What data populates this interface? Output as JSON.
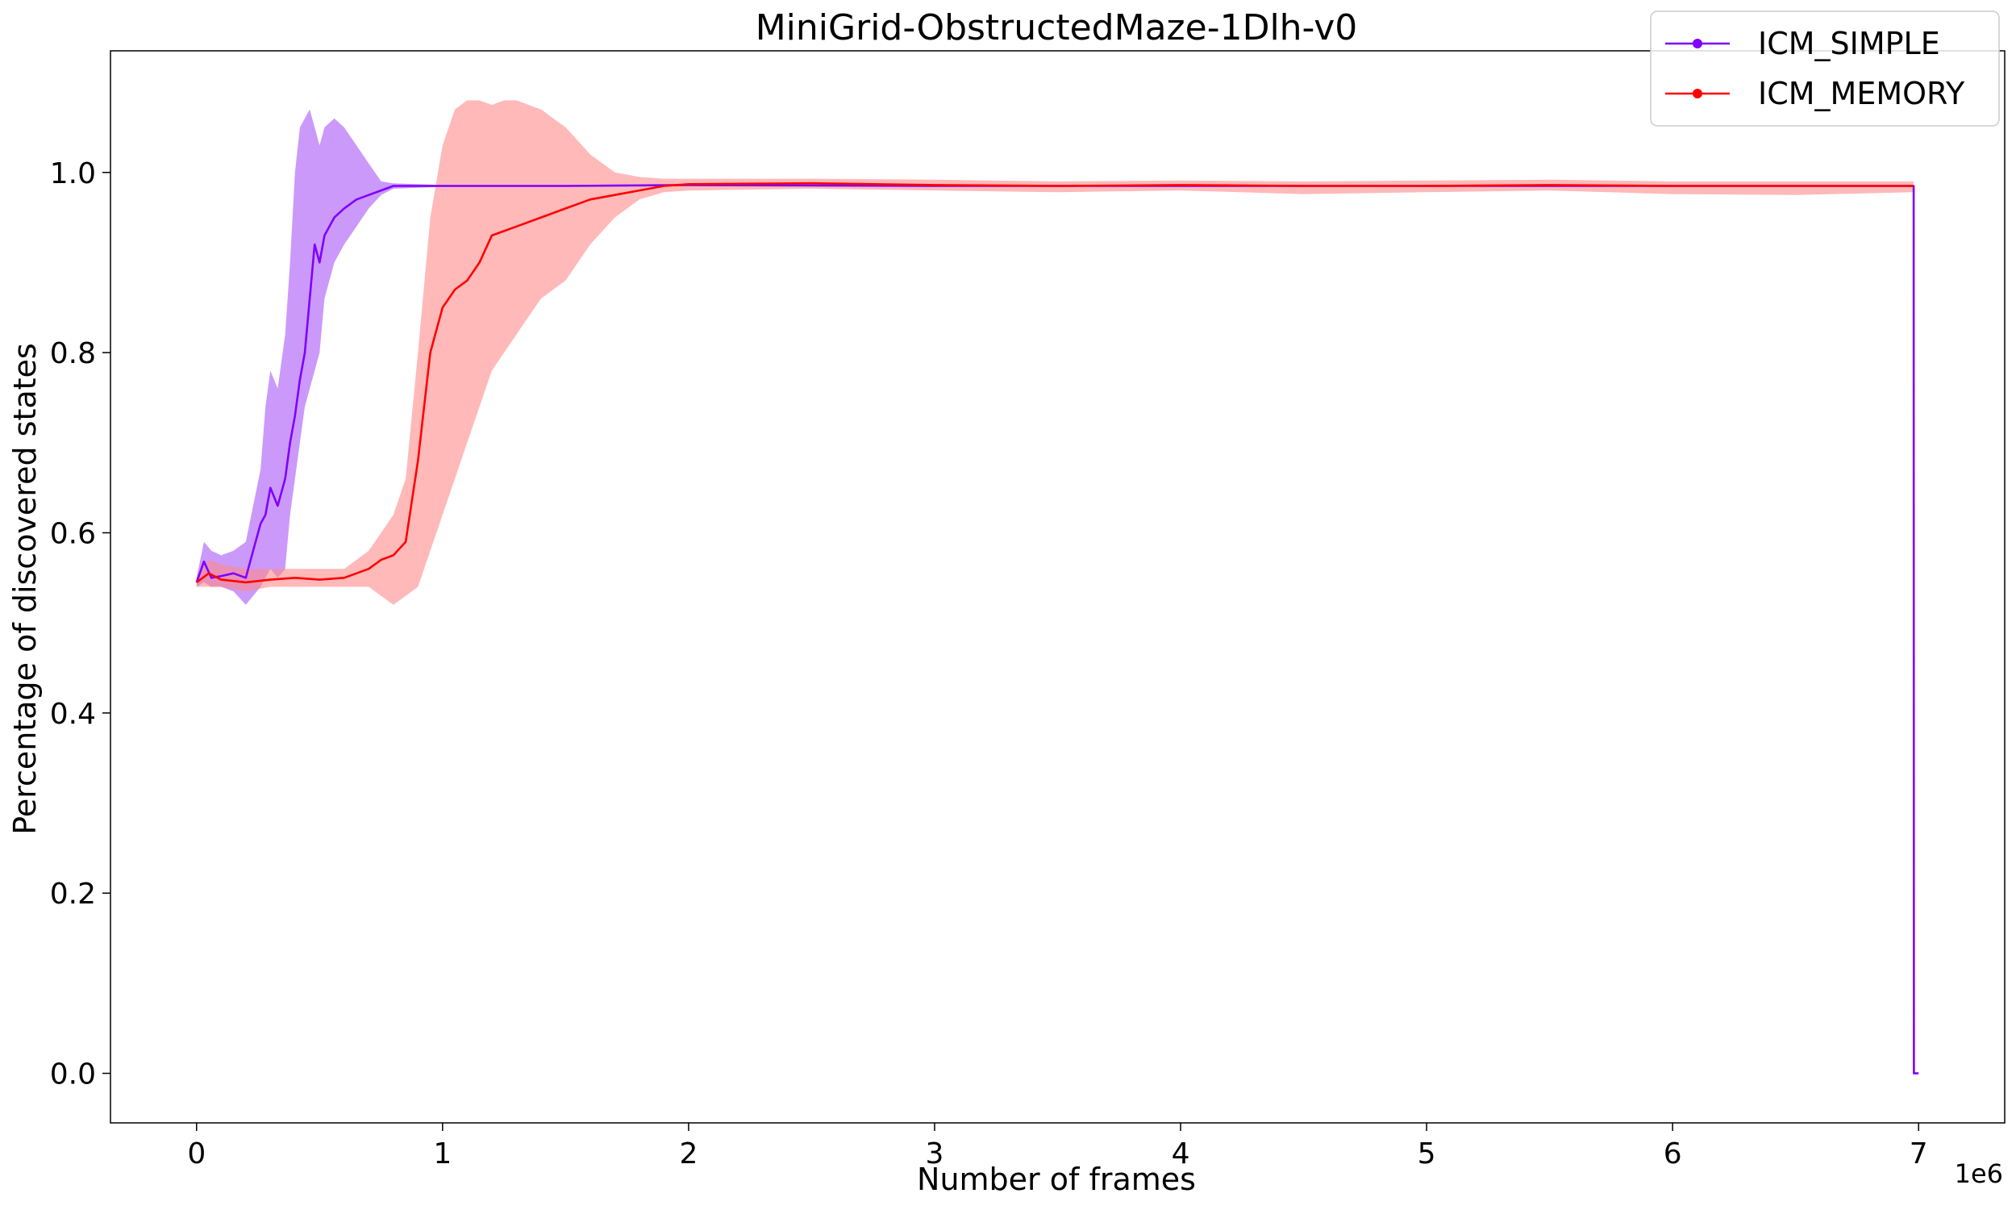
{
  "chart_data": {
    "type": "line",
    "title": "MiniGrid-ObstructedMaze-1Dlh-v0",
    "xlabel": "Number of frames",
    "ylabel": "Percentage of discovered states",
    "x_offset_text": "1e6",
    "xlim": [
      -350000,
      7350000
    ],
    "ylim": [
      -0.055,
      1.135
    ],
    "x_ticks": [
      0,
      1000000,
      2000000,
      3000000,
      4000000,
      5000000,
      6000000,
      7000000
    ],
    "x_tick_labels": [
      "0",
      "1",
      "2",
      "3",
      "4",
      "5",
      "6",
      "7"
    ],
    "y_ticks": [
      0.0,
      0.2,
      0.4,
      0.6,
      0.8,
      1.0
    ],
    "y_tick_labels": [
      "0.0",
      "0.2",
      "0.4",
      "0.6",
      "0.8",
      "1.0"
    ],
    "grid": false,
    "legend_position": "top-right",
    "series": [
      {
        "name": "ICM_SIMPLE",
        "color": "#8000ff",
        "band_color": "#a855f7",
        "x": [
          0,
          30000,
          60000,
          100000,
          150000,
          200000,
          230000,
          260000,
          280000,
          300000,
          330000,
          360000,
          380000,
          400000,
          420000,
          440000,
          460000,
          480000,
          500000,
          520000,
          560000,
          600000,
          650000,
          700000,
          750000,
          800000,
          1000000,
          1500000,
          2000000,
          3000000,
          4000000,
          5000000,
          6000000,
          6980000,
          6981000,
          7000000
        ],
        "y": [
          0.545,
          0.568,
          0.55,
          0.552,
          0.555,
          0.55,
          0.58,
          0.61,
          0.62,
          0.65,
          0.63,
          0.66,
          0.7,
          0.73,
          0.77,
          0.8,
          0.86,
          0.92,
          0.9,
          0.93,
          0.95,
          0.96,
          0.97,
          0.975,
          0.98,
          0.985,
          0.985,
          0.985,
          0.986,
          0.985,
          0.985,
          0.985,
          0.985,
          0.985,
          0.0,
          0.0
        ],
        "lower": [
          0.54,
          0.545,
          0.54,
          0.54,
          0.535,
          0.52,
          0.53,
          0.54,
          0.55,
          0.56,
          0.55,
          0.56,
          0.62,
          0.66,
          0.7,
          0.74,
          0.76,
          0.78,
          0.8,
          0.86,
          0.9,
          0.92,
          0.94,
          0.96,
          0.975,
          0.982,
          0.984,
          0.984,
          0.985,
          0.984,
          0.984,
          0.984,
          0.984,
          0.984,
          0.0,
          0.0
        ],
        "upper": [
          0.55,
          0.59,
          0.58,
          0.575,
          0.58,
          0.59,
          0.63,
          0.67,
          0.74,
          0.78,
          0.76,
          0.82,
          0.9,
          1.0,
          1.05,
          1.06,
          1.07,
          1.05,
          1.03,
          1.05,
          1.06,
          1.05,
          1.03,
          1.01,
          0.99,
          0.988,
          0.986,
          0.986,
          0.987,
          0.986,
          0.986,
          0.986,
          0.986,
          0.986,
          0.0,
          0.0
        ]
      },
      {
        "name": "ICM_MEMORY",
        "color": "#ff0000",
        "band_color": "#ff8a8a",
        "x": [
          0,
          50000,
          100000,
          200000,
          300000,
          400000,
          500000,
          600000,
          700000,
          750000,
          800000,
          850000,
          900000,
          950000,
          1000000,
          1050000,
          1100000,
          1150000,
          1200000,
          1250000,
          1300000,
          1400000,
          1500000,
          1600000,
          1700000,
          1800000,
          1900000,
          2000000,
          2500000,
          3000000,
          3500000,
          4000000,
          4500000,
          5000000,
          5500000,
          6000000,
          6500000,
          6980000
        ],
        "y": [
          0.545,
          0.555,
          0.548,
          0.545,
          0.548,
          0.55,
          0.548,
          0.55,
          0.56,
          0.57,
          0.575,
          0.59,
          0.68,
          0.8,
          0.85,
          0.87,
          0.88,
          0.9,
          0.93,
          0.935,
          0.94,
          0.95,
          0.96,
          0.97,
          0.975,
          0.98,
          0.985,
          0.987,
          0.988,
          0.986,
          0.985,
          0.986,
          0.985,
          0.985,
          0.986,
          0.985,
          0.985,
          0.985
        ],
        "lower": [
          0.54,
          0.54,
          0.54,
          0.535,
          0.54,
          0.54,
          0.54,
          0.54,
          0.54,
          0.53,
          0.52,
          0.53,
          0.54,
          0.58,
          0.62,
          0.66,
          0.7,
          0.74,
          0.78,
          0.8,
          0.82,
          0.86,
          0.88,
          0.92,
          0.95,
          0.97,
          0.978,
          0.98,
          0.982,
          0.98,
          0.978,
          0.98,
          0.976,
          0.978,
          0.98,
          0.976,
          0.975,
          0.978
        ],
        "upper": [
          0.55,
          0.57,
          0.565,
          0.56,
          0.56,
          0.56,
          0.56,
          0.56,
          0.58,
          0.6,
          0.62,
          0.66,
          0.8,
          0.95,
          1.03,
          1.07,
          1.08,
          1.08,
          1.075,
          1.08,
          1.08,
          1.07,
          1.05,
          1.02,
          1.0,
          0.995,
          0.993,
          0.993,
          0.993,
          0.992,
          0.99,
          0.991,
          0.99,
          0.991,
          0.992,
          0.99,
          0.99,
          0.99
        ]
      }
    ]
  }
}
